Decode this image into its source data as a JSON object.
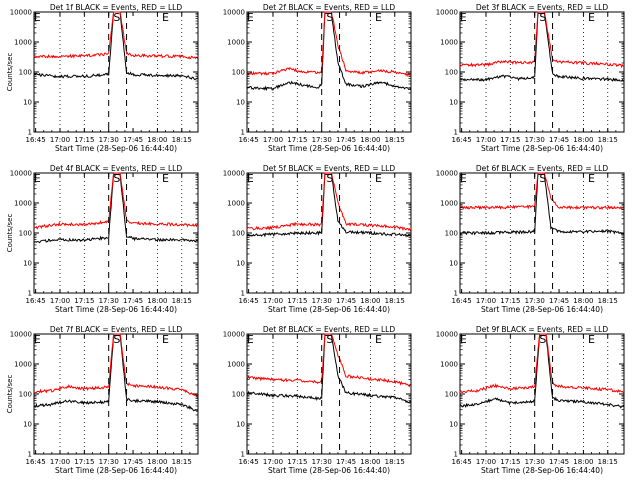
{
  "chart_data": [
    {
      "type": "line",
      "title": "Det 1f BLACK = Events, RED = LLD",
      "xlabel": "Start Time (28-Sep-06 16:44:40)",
      "ylabel": "Counts/sec",
      "xlim": [
        "16:44",
        "18:25"
      ],
      "ylim": [
        1,
        10000
      ],
      "yscale": "log",
      "xticks": [
        "16:45",
        "17:00",
        "17:15",
        "17:30",
        "17:45",
        "18:00",
        "18:15"
      ],
      "yticks": [
        "1",
        "10",
        "100",
        "1000",
        "10000"
      ],
      "markers": [
        {
          "label": "E",
          "time": "16:46"
        },
        {
          "label": "S",
          "time": "17:35"
        },
        {
          "label": "E",
          "time": "18:05"
        }
      ],
      "dashed_lines": [
        "17:30",
        "17:41"
      ],
      "dotted_lines": [
        "17:00",
        "17:15",
        "18:00",
        "18:15"
      ],
      "series": [
        {
          "color": "#000000",
          "x": [
            "16:45",
            "17:00",
            "17:15",
            "17:28",
            "17:30",
            "17:33",
            "17:37",
            "17:41",
            "17:45",
            "18:00",
            "18:15",
            "18:24"
          ],
          "values": [
            82,
            70,
            72,
            80,
            85,
            10000.0,
            10000.0,
            95,
            82,
            76,
            75,
            60
          ]
        },
        {
          "color": "#ff0000",
          "x": [
            "16:45",
            "17:00",
            "17:15",
            "17:28",
            "17:30",
            "17:33",
            "17:37",
            "17:41",
            "17:45",
            "18:00",
            "18:15",
            "18:24"
          ],
          "values": [
            330,
            330,
            350,
            390,
            420,
            10000.0,
            10000.0,
            420,
            360,
            340,
            330,
            290
          ]
        }
      ]
    },
    {
      "type": "line",
      "title": "Det 2f BLACK = Events, RED = LLD",
      "xlabel": "Start Time (28-Sep-06 16:44:40)",
      "ylabel": "",
      "xlim": [
        "16:44",
        "18:25"
      ],
      "ylim": [
        1,
        10000
      ],
      "yscale": "log",
      "xticks": [
        "16:45",
        "17:00",
        "17:15",
        "17:30",
        "17:45",
        "18:00",
        "18:15"
      ],
      "yticks": [
        "1",
        "10",
        "100",
        "1000",
        "10000"
      ],
      "markers": [
        {
          "label": "E",
          "time": "16:46"
        },
        {
          "label": "S",
          "time": "17:35"
        },
        {
          "label": "E",
          "time": "18:05"
        }
      ],
      "dashed_lines": [
        "17:30",
        "17:41"
      ],
      "dotted_lines": [
        "17:00",
        "17:15",
        "18:00",
        "18:15"
      ],
      "series": [
        {
          "color": "#000000",
          "x": [
            "16:45",
            "17:00",
            "17:10",
            "17:20",
            "17:28",
            "17:30",
            "17:32",
            "17:36",
            "17:40",
            "17:45",
            "17:55",
            "18:05",
            "18:15",
            "18:24"
          ],
          "values": [
            30,
            28,
            45,
            35,
            30,
            40,
            9000,
            9000,
            200,
            40,
            33,
            45,
            35,
            27
          ]
        },
        {
          "color": "#ff0000",
          "x": [
            "16:45",
            "17:00",
            "17:10",
            "17:20",
            "17:28",
            "17:30",
            "17:32",
            "17:36",
            "17:40",
            "17:45",
            "17:55",
            "18:05",
            "18:15",
            "18:24"
          ],
          "values": [
            90,
            90,
            130,
            100,
            95,
            110,
            10000,
            10000,
            800,
            110,
            95,
            110,
            100,
            80
          ]
        }
      ]
    },
    {
      "type": "line",
      "title": "Det 3f BLACK = Events, RED = LLD",
      "xlabel": "Start Time (28-Sep-06 16:44:40)",
      "ylabel": "",
      "xlim": [
        "16:44",
        "18:25"
      ],
      "ylim": [
        1,
        10000
      ],
      "yscale": "log",
      "xticks": [
        "16:45",
        "17:00",
        "17:15",
        "17:30",
        "17:45",
        "18:00",
        "18:15"
      ],
      "yticks": [
        "1",
        "10",
        "100",
        "1000",
        "10000"
      ],
      "markers": [
        {
          "label": "E",
          "time": "16:46"
        },
        {
          "label": "S",
          "time": "17:35"
        },
        {
          "label": "E",
          "time": "18:05"
        }
      ],
      "dashed_lines": [
        "17:30",
        "17:41"
      ],
      "dotted_lines": [
        "17:00",
        "17:15",
        "18:00",
        "18:15"
      ],
      "series": [
        {
          "color": "#000000",
          "x": [
            "16:45",
            "17:00",
            "17:10",
            "17:20",
            "17:28",
            "17:30",
            "17:32",
            "17:36",
            "17:41",
            "17:45",
            "18:00",
            "18:15",
            "18:24"
          ],
          "values": [
            55,
            55,
            75,
            60,
            65,
            70,
            9000,
            9000,
            85,
            70,
            60,
            58,
            50
          ]
        },
        {
          "color": "#ff0000",
          "x": [
            "16:45",
            "17:00",
            "17:10",
            "17:20",
            "17:28",
            "17:30",
            "17:32",
            "17:36",
            "17:41",
            "17:45",
            "18:00",
            "18:15",
            "18:24"
          ],
          "values": [
            170,
            175,
            230,
            200,
            210,
            220,
            10000,
            10000,
            260,
            220,
            200,
            180,
            160
          ]
        }
      ]
    },
    {
      "type": "line",
      "title": "Det 4f BLACK = Events, RED = LLD",
      "xlabel": "Start Time (28-Sep-06 16:44:40)",
      "ylabel": "Counts/sec",
      "xlim": [
        "16:44",
        "18:25"
      ],
      "ylim": [
        1,
        10000
      ],
      "yscale": "log",
      "xticks": [
        "16:45",
        "17:00",
        "17:15",
        "17:30",
        "17:45",
        "18:00",
        "18:15"
      ],
      "yticks": [
        "1",
        "10",
        "100",
        "1000",
        "10000"
      ],
      "markers": [
        {
          "label": "E",
          "time": "16:46"
        },
        {
          "label": "S",
          "time": "17:35"
        },
        {
          "label": "E",
          "time": "18:05"
        }
      ],
      "dashed_lines": [
        "17:30",
        "17:41"
      ],
      "dotted_lines": [
        "17:00",
        "17:15",
        "18:00",
        "18:15"
      ],
      "series": [
        {
          "color": "#000000",
          "x": [
            "16:45",
            "17:00",
            "17:15",
            "17:28",
            "17:30",
            "17:33",
            "17:37",
            "17:41",
            "17:45",
            "18:00",
            "18:15",
            "18:24"
          ],
          "values": [
            50,
            60,
            58,
            70,
            72,
            9000,
            9000,
            80,
            65,
            60,
            58,
            55
          ]
        },
        {
          "color": "#ff0000",
          "x": [
            "16:45",
            "17:00",
            "17:15",
            "17:28",
            "17:30",
            "17:33",
            "17:37",
            "17:41",
            "17:45",
            "18:00",
            "18:15",
            "18:24"
          ],
          "values": [
            150,
            200,
            190,
            230,
            240,
            10000,
            10000,
            260,
            210,
            200,
            190,
            180
          ]
        }
      ]
    },
    {
      "type": "line",
      "title": "Det 5f BLACK = Events, RED = LLD",
      "xlabel": "Start Time (28-Sep-06 16:44:40)",
      "ylabel": "",
      "xlim": [
        "16:44",
        "18:25"
      ],
      "ylim": [
        1,
        10000
      ],
      "yscale": "log",
      "xticks": [
        "16:45",
        "17:00",
        "17:15",
        "17:30",
        "17:45",
        "18:00",
        "18:15"
      ],
      "yticks": [
        "1",
        "10",
        "100",
        "1000",
        "10000"
      ],
      "markers": [
        {
          "label": "E",
          "time": "16:46"
        },
        {
          "label": "S",
          "time": "17:35"
        },
        {
          "label": "E",
          "time": "18:05"
        }
      ],
      "dashed_lines": [
        "17:30",
        "17:41"
      ],
      "dotted_lines": [
        "17:00",
        "17:15",
        "18:00",
        "18:15"
      ],
      "series": [
        {
          "color": "#000000",
          "x": [
            "16:45",
            "17:00",
            "17:15",
            "17:28",
            "17:30",
            "17:32",
            "17:36",
            "17:40",
            "17:45",
            "18:00",
            "18:15",
            "18:24"
          ],
          "values": [
            85,
            90,
            100,
            100,
            105,
            9000,
            9000,
            250,
            110,
            100,
            90,
            80
          ]
        },
        {
          "color": "#ff0000",
          "x": [
            "16:45",
            "17:00",
            "17:15",
            "17:28",
            "17:30",
            "17:32",
            "17:36",
            "17:40",
            "17:45",
            "18:00",
            "18:15",
            "18:24"
          ],
          "values": [
            140,
            150,
            200,
            190,
            200,
            10000,
            10000,
            1000,
            200,
            180,
            160,
            130
          ]
        }
      ]
    },
    {
      "type": "line",
      "title": "Det 6f BLACK = Events, RED = LLD",
      "xlabel": "Start Time (28-Sep-06 16:44:40)",
      "ylabel": "",
      "xlim": [
        "16:44",
        "18:25"
      ],
      "ylim": [
        1,
        10000
      ],
      "yscale": "log",
      "xticks": [
        "16:45",
        "17:00",
        "17:15",
        "17:30",
        "17:45",
        "18:00",
        "18:15"
      ],
      "yticks": [
        "1",
        "10",
        "100",
        "1000",
        "10000"
      ],
      "markers": [
        {
          "label": "E",
          "time": "16:46"
        },
        {
          "label": "S",
          "time": "17:35"
        },
        {
          "label": "E",
          "time": "18:05"
        }
      ],
      "dashed_lines": [
        "17:30",
        "17:41"
      ],
      "dotted_lines": [
        "17:00",
        "17:15",
        "18:00",
        "18:15"
      ],
      "series": [
        {
          "color": "#000000",
          "x": [
            "16:45",
            "17:00",
            "17:15",
            "17:28",
            "17:30",
            "17:32",
            "17:36",
            "17:40",
            "17:45",
            "18:00",
            "18:15",
            "18:24"
          ],
          "values": [
            100,
            100,
            105,
            110,
            115,
            9000,
            9000,
            150,
            110,
            110,
            115,
            100
          ]
        },
        {
          "color": "#ff0000",
          "x": [
            "16:45",
            "17:00",
            "17:15",
            "17:28",
            "17:30",
            "17:32",
            "17:36",
            "17:40",
            "17:45",
            "18:00",
            "18:15",
            "18:24"
          ],
          "values": [
            700,
            700,
            720,
            750,
            800,
            10000,
            10000,
            1500,
            720,
            700,
            700,
            680
          ]
        }
      ]
    },
    {
      "type": "line",
      "title": "Det 7f BLACK = Events, RED = LLD",
      "xlabel": "Start Time (28-Sep-06 16:44:40)",
      "ylabel": "Counts/sec",
      "xlim": [
        "16:44",
        "18:25"
      ],
      "ylim": [
        1,
        10000
      ],
      "yscale": "log",
      "xticks": [
        "16:45",
        "17:00",
        "17:15",
        "17:30",
        "17:45",
        "18:00",
        "18:15"
      ],
      "yticks": [
        "1",
        "10",
        "100",
        "1000",
        "10000"
      ],
      "markers": [
        {
          "label": "E",
          "time": "16:46"
        },
        {
          "label": "S",
          "time": "17:35"
        },
        {
          "label": "E",
          "time": "18:05"
        }
      ],
      "dashed_lines": [
        "17:30",
        "17:41"
      ],
      "dotted_lines": [
        "17:00",
        "17:15",
        "18:00",
        "18:15"
      ],
      "series": [
        {
          "color": "#000000",
          "x": [
            "16:45",
            "16:55",
            "17:05",
            "17:15",
            "17:28",
            "17:30",
            "17:33",
            "17:37",
            "17:41",
            "17:45",
            "18:00",
            "18:15",
            "18:24"
          ],
          "values": [
            40,
            45,
            60,
            50,
            55,
            60,
            9000,
            9000,
            70,
            60,
            55,
            45,
            28
          ]
        },
        {
          "color": "#ff0000",
          "x": [
            "16:45",
            "16:55",
            "17:05",
            "17:15",
            "17:28",
            "17:30",
            "17:33",
            "17:37",
            "17:41",
            "17:45",
            "18:00",
            "18:15",
            "18:24"
          ],
          "values": [
            120,
            130,
            180,
            150,
            170,
            180,
            10000,
            10000,
            220,
            190,
            170,
            140,
            85
          ]
        }
      ]
    },
    {
      "type": "line",
      "title": "Det 8f BLACK = Events, RED = LLD",
      "xlabel": "Start Time (28-Sep-06 16:44:40)",
      "ylabel": "",
      "xlim": [
        "16:44",
        "18:25"
      ],
      "ylim": [
        1,
        10000
      ],
      "yscale": "log",
      "xticks": [
        "16:45",
        "17:00",
        "17:15",
        "17:30",
        "17:45",
        "18:00",
        "18:15"
      ],
      "yticks": [
        "1",
        "10",
        "100",
        "1000",
        "10000"
      ],
      "markers": [
        {
          "label": "E",
          "time": "16:46"
        },
        {
          "label": "S",
          "time": "17:35"
        },
        {
          "label": "E",
          "time": "18:05"
        }
      ],
      "dashed_lines": [
        "17:30",
        "17:41"
      ],
      "dotted_lines": [
        "17:00",
        "17:15",
        "18:00",
        "18:15"
      ],
      "series": [
        {
          "color": "#000000",
          "x": [
            "16:45",
            "17:00",
            "17:15",
            "17:28",
            "17:30",
            "17:32",
            "17:36",
            "17:40",
            "17:45",
            "18:00",
            "18:15",
            "18:24"
          ],
          "values": [
            110,
            90,
            85,
            70,
            75,
            9000,
            9000,
            400,
            110,
            90,
            75,
            55
          ]
        },
        {
          "color": "#ff0000",
          "x": [
            "16:45",
            "17:00",
            "17:15",
            "17:28",
            "17:30",
            "17:32",
            "17:36",
            "17:40",
            "17:45",
            "18:00",
            "18:15",
            "18:24"
          ],
          "values": [
            350,
            300,
            280,
            250,
            270,
            10000,
            10000,
            2000,
            400,
            320,
            260,
            190
          ]
        }
      ]
    },
    {
      "type": "line",
      "title": "Det 9f BLACK = Events, RED = LLD",
      "xlabel": "Start Time (28-Sep-06 16:44:40)",
      "ylabel": "",
      "xlim": [
        "16:44",
        "18:25"
      ],
      "ylim": [
        1,
        10000
      ],
      "yscale": "log",
      "xticks": [
        "16:45",
        "17:00",
        "17:15",
        "17:30",
        "17:45",
        "18:00",
        "18:15"
      ],
      "yticks": [
        "1",
        "10",
        "100",
        "1000",
        "10000"
      ],
      "markers": [
        {
          "label": "E",
          "time": "16:46"
        },
        {
          "label": "S",
          "time": "17:35"
        },
        {
          "label": "E",
          "time": "18:05"
        }
      ],
      "dashed_lines": [
        "17:30",
        "17:41"
      ],
      "dotted_lines": [
        "17:00",
        "17:15",
        "18:00",
        "18:15"
      ],
      "series": [
        {
          "color": "#000000",
          "x": [
            "16:45",
            "16:55",
            "17:05",
            "17:15",
            "17:28",
            "17:30",
            "17:33",
            "17:37",
            "17:41",
            "17:45",
            "18:00",
            "18:15",
            "18:24"
          ],
          "values": [
            40,
            45,
            70,
            50,
            55,
            60,
            9000,
            9000,
            75,
            60,
            55,
            45,
            38
          ]
        },
        {
          "color": "#ff0000",
          "x": [
            "16:45",
            "16:55",
            "17:05",
            "17:15",
            "17:28",
            "17:30",
            "17:33",
            "17:37",
            "17:41",
            "17:45",
            "18:00",
            "18:15",
            "18:24"
          ],
          "values": [
            120,
            130,
            190,
            150,
            170,
            180,
            10000,
            10000,
            220,
            180,
            160,
            140,
            120
          ]
        }
      ]
    }
  ]
}
